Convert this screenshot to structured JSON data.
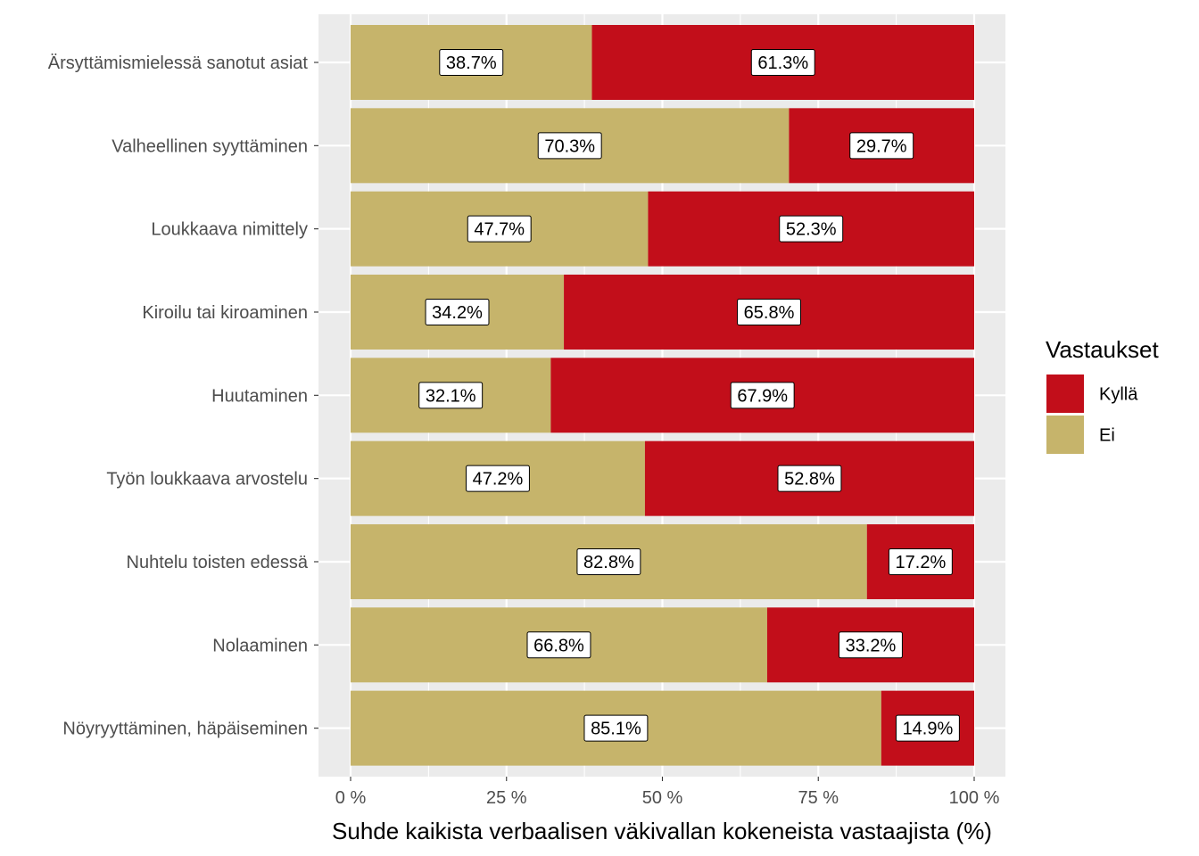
{
  "chart_data": {
    "type": "bar",
    "orientation": "horizontal",
    "stacked": true,
    "xlabel": "Suhde kaikista verbaalisen väkivallan kokeneista vastaajista (%)",
    "xlim": [
      0,
      100
    ],
    "x_ticks": [
      0,
      25,
      50,
      75,
      100
    ],
    "x_tick_labels": [
      "0 %",
      "25 %",
      "50 %",
      "75 %",
      "100 %"
    ],
    "grid": true,
    "legend_position": "right",
    "legend_title": "Vastaukset",
    "categories": [
      "Ärsyttämismielessä sanotut asiat",
      "Valheellinen syyttäminen",
      "Loukkaava nimittely",
      "Kiroilu tai kiroaminen",
      "Huutaminen",
      "Työn loukkaava arvostelu",
      "Nuhtelu toisten edessä",
      "Nolaaminen",
      "Nöyryyttäminen, häpäiseminen"
    ],
    "series": [
      {
        "name": "Ei",
        "color": "#c6b46b",
        "values": [
          38.7,
          70.3,
          47.7,
          34.2,
          32.1,
          47.2,
          82.8,
          66.8,
          85.1
        ],
        "labels": [
          "38.7%",
          "70.3%",
          "47.7%",
          "34.2%",
          "32.1%",
          "47.2%",
          "82.8%",
          "66.8%",
          "85.1%"
        ]
      },
      {
        "name": "Kyllä",
        "color": "#c20e1a",
        "values": [
          61.3,
          29.7,
          52.3,
          65.8,
          67.9,
          52.8,
          17.2,
          33.2,
          14.9
        ],
        "labels": [
          "61.3%",
          "29.7%",
          "52.3%",
          "65.8%",
          "67.9%",
          "52.8%",
          "17.2%",
          "33.2%",
          "14.9%"
        ]
      }
    ],
    "legend_order": [
      "Kyllä",
      "Ei"
    ]
  }
}
